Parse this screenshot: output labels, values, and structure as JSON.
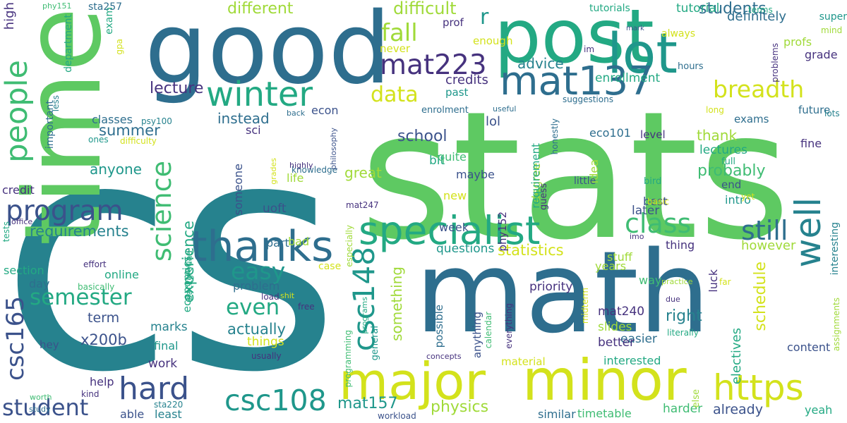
{
  "palette": {
    "yellow": "#d3e21c",
    "lime": "#a0da39",
    "green": "#5ec962",
    "mint": "#3fbc73",
    "teal": "#23a983",
    "cyan": "#1f978b",
    "steel": "#26828e",
    "blue": "#2e6e8e",
    "indigo": "#3b528b",
    "violet": "#46327e",
    "purple": "#440154"
  },
  "words": [
    {
      "text": "stats",
      "color": "green"
    },
    {
      "text": "cs",
      "color": "steel"
    },
    {
      "text": "math",
      "color": "blue"
    },
    {
      "text": "time",
      "color": "green"
    },
    {
      "text": "good",
      "color": "blue"
    },
    {
      "text": "post",
      "color": "teal"
    },
    {
      "text": "lot",
      "color": "cyan"
    },
    {
      "text": "minor",
      "color": "yellow"
    },
    {
      "text": "major",
      "color": "yellow"
    },
    {
      "text": "thanks",
      "color": "blue"
    },
    {
      "text": "specialist",
      "color": "teal"
    },
    {
      "text": "well",
      "color": "steel"
    },
    {
      "text": "mat137",
      "color": "blue"
    },
    {
      "text": "winter",
      "color": "teal"
    },
    {
      "text": "https",
      "color": "yellow"
    },
    {
      "text": "people",
      "color": "mint"
    },
    {
      "text": "csc148",
      "color": "cyan"
    },
    {
      "text": "program",
      "color": "indigo"
    },
    {
      "text": "hard",
      "color": "indigo"
    },
    {
      "text": "csc108",
      "color": "cyan"
    },
    {
      "text": "mat223",
      "color": "violet"
    },
    {
      "text": "science",
      "color": "mint"
    },
    {
      "text": "csc165",
      "color": "indigo"
    },
    {
      "text": "breadth",
      "color": "yellow"
    },
    {
      "text": "fall",
      "color": "lime"
    },
    {
      "text": "class",
      "color": "mint"
    },
    {
      "text": "still",
      "color": "blue"
    },
    {
      "text": "easy",
      "color": "cyan"
    },
    {
      "text": "even",
      "color": "teal"
    },
    {
      "text": "semester",
      "color": "teal"
    },
    {
      "text": "data",
      "color": "yellow"
    },
    {
      "text": "student",
      "color": "indigo"
    },
    {
      "text": "schedule",
      "color": "yellow"
    },
    {
      "text": "probably",
      "color": "mint"
    },
    {
      "text": "something",
      "color": "lime"
    },
    {
      "text": "experience",
      "color": "teal"
    },
    {
      "text": "actually",
      "color": "steel"
    },
    {
      "text": "statistics",
      "color": "yellow"
    },
    {
      "text": "r",
      "color": "cyan"
    },
    {
      "text": "school",
      "color": "indigo"
    },
    {
      "text": "mat157",
      "color": "cyan"
    },
    {
      "text": "physics",
      "color": "lime"
    },
    {
      "text": "students",
      "color": "blue"
    },
    {
      "text": "right",
      "color": "steel"
    },
    {
      "text": "difficult",
      "color": "lime"
    },
    {
      "text": "different",
      "color": "lime"
    },
    {
      "text": "lecture",
      "color": "violet"
    },
    {
      "text": "requirements",
      "color": "steel"
    },
    {
      "text": "summer",
      "color": "blue"
    },
    {
      "text": "great",
      "color": "lime"
    },
    {
      "text": "advice",
      "color": "steel"
    },
    {
      "text": "credits",
      "color": "violet"
    },
    {
      "text": "however",
      "color": "lime"
    },
    {
      "text": "interesting",
      "color": "steel"
    },
    {
      "text": "electives",
      "color": "teal"
    },
    {
      "text": "already",
      "color": "indigo"
    },
    {
      "text": "x200b",
      "color": "indigo"
    },
    {
      "text": "definitely",
      "color": "blue"
    },
    {
      "text": "tutorial",
      "color": "teal"
    },
    {
      "text": "enrollment",
      "color": "teal"
    },
    {
      "text": "high",
      "color": "violet"
    },
    {
      "text": "instead",
      "color": "blue"
    },
    {
      "text": "anyone",
      "color": "cyan"
    },
    {
      "text": "lectures",
      "color": "teal"
    },
    {
      "text": "thank",
      "color": "lime"
    },
    {
      "text": "priority",
      "color": "violet"
    },
    {
      "text": "work",
      "color": "violet"
    },
    {
      "text": "term",
      "color": "indigo"
    },
    {
      "text": "marks",
      "color": "steel"
    },
    {
      "text": "uoft",
      "color": "indigo"
    },
    {
      "text": "mat240",
      "color": "violet"
    },
    {
      "text": "later",
      "color": "indigo"
    },
    {
      "text": "intro",
      "color": "cyan"
    },
    {
      "text": "questions",
      "color": "cyan"
    },
    {
      "text": "thing",
      "color": "violet"
    },
    {
      "text": "way",
      "color": "mint"
    },
    {
      "text": "years",
      "color": "lime"
    },
    {
      "text": "timetable",
      "color": "mint"
    },
    {
      "text": "interested",
      "color": "teal"
    },
    {
      "text": "easier",
      "color": "blue"
    },
    {
      "text": "content",
      "color": "indigo"
    },
    {
      "text": "grade",
      "color": "violet"
    },
    {
      "text": "profs",
      "color": "lime"
    },
    {
      "text": "super",
      "color": "cyan"
    },
    {
      "text": "phy152",
      "color": "violet"
    },
    {
      "text": "eco101",
      "color": "blue"
    },
    {
      "text": "fine",
      "color": "violet"
    },
    {
      "text": "bad",
      "color": "lime"
    },
    {
      "text": "final",
      "color": "cyan"
    },
    {
      "text": "help",
      "color": "violet"
    },
    {
      "text": "able",
      "color": "indigo"
    },
    {
      "text": "least",
      "color": "steel"
    },
    {
      "text": "similar",
      "color": "blue"
    },
    {
      "text": "harder",
      "color": "mint"
    },
    {
      "text": "yeah",
      "color": "teal"
    },
    {
      "text": "better",
      "color": "violet"
    },
    {
      "text": "slides",
      "color": "lime"
    },
    {
      "text": "luck",
      "color": "violet"
    },
    {
      "text": "stuff",
      "color": "lime"
    },
    {
      "text": "best",
      "color": "indigo"
    },
    {
      "text": "level",
      "color": "violet"
    },
    {
      "text": "lol",
      "color": "indigo"
    },
    {
      "text": "idea",
      "color": "lime"
    },
    {
      "text": "bit",
      "color": "teal"
    },
    {
      "text": "maybe",
      "color": "indigo"
    },
    {
      "text": "quite",
      "color": "mint"
    },
    {
      "text": "degree",
      "color": "lime"
    },
    {
      "text": "requirement",
      "color": "teal"
    },
    {
      "text": "new",
      "color": "yellow"
    },
    {
      "text": "week",
      "color": "indigo"
    },
    {
      "text": "part",
      "color": "blue"
    },
    {
      "text": "online",
      "color": "teal"
    },
    {
      "text": "life",
      "color": "lime"
    },
    {
      "text": "someone",
      "color": "indigo"
    },
    {
      "text": "sci",
      "color": "violet"
    },
    {
      "text": "econ",
      "color": "indigo"
    },
    {
      "text": "classes",
      "color": "blue"
    },
    {
      "text": "exams",
      "color": "blue"
    },
    {
      "text": "things",
      "color": "yellow"
    },
    {
      "text": "problem",
      "color": "blue"
    },
    {
      "text": "economics",
      "color": "teal"
    },
    {
      "text": "hey",
      "color": "indigo"
    },
    {
      "text": "day",
      "color": "blue"
    },
    {
      "text": "section",
      "color": "teal"
    },
    {
      "text": "credit",
      "color": "violet"
    },
    {
      "text": "important",
      "color": "blue"
    },
    {
      "text": "department",
      "color": "teal"
    },
    {
      "text": "material",
      "color": "yellow"
    },
    {
      "text": "possible",
      "color": "blue"
    },
    {
      "text": "anything",
      "color": "indigo"
    },
    {
      "text": "general",
      "color": "cyan"
    },
    {
      "text": "never",
      "color": "yellow"
    },
    {
      "text": "enough",
      "color": "yellow"
    },
    {
      "text": "prof",
      "color": "violet"
    },
    {
      "text": "past",
      "color": "cyan"
    },
    {
      "text": "end",
      "color": "indigo"
    },
    {
      "text": "hours",
      "color": "blue"
    },
    {
      "text": "tutorials",
      "color": "teal"
    },
    {
      "text": "sta257",
      "color": "blue"
    },
    {
      "text": "phy151",
      "color": "mint"
    },
    {
      "text": "psy100",
      "color": "steel"
    },
    {
      "text": "mat247",
      "color": "violet"
    },
    {
      "text": "sta220",
      "color": "steel"
    },
    {
      "text": "exam",
      "color": "teal"
    },
    {
      "text": "gpa",
      "color": "yellow"
    },
    {
      "text": "ones",
      "color": "cyan"
    },
    {
      "text": "difficulty",
      "color": "yellow"
    },
    {
      "text": "less",
      "color": "steel"
    },
    {
      "text": "tests",
      "color": "teal"
    },
    {
      "text": "office",
      "color": "violet"
    },
    {
      "text": "effort",
      "color": "violet"
    },
    {
      "text": "basically",
      "color": "mint"
    },
    {
      "text": "background",
      "color": "teal"
    },
    {
      "text": "worth",
      "color": "mint"
    },
    {
      "text": "study",
      "color": "blue"
    },
    {
      "text": "kind",
      "color": "violet"
    },
    {
      "text": "case",
      "color": "yellow"
    },
    {
      "text": "load",
      "color": "violet"
    },
    {
      "text": "shit",
      "color": "yellow"
    },
    {
      "text": "free",
      "color": "violet"
    },
    {
      "text": "usually",
      "color": "violet"
    },
    {
      "text": "programming",
      "color": "mint"
    },
    {
      "text": "programs",
      "color": "teal"
    },
    {
      "text": "especially",
      "color": "lime"
    },
    {
      "text": "workload",
      "color": "indigo"
    },
    {
      "text": "concepts",
      "color": "violet"
    },
    {
      "text": "calendar",
      "color": "mint"
    },
    {
      "text": "everything",
      "color": "violet"
    },
    {
      "text": "midterm",
      "color": "yellow"
    },
    {
      "text": "due",
      "color": "violet"
    },
    {
      "text": "literally",
      "color": "teal"
    },
    {
      "text": "assignments",
      "color": "lime"
    },
    {
      "text": "else",
      "color": "lime"
    },
    {
      "text": "far",
      "color": "yellow"
    },
    {
      "text": "practice",
      "color": "lime"
    },
    {
      "text": "basic",
      "color": "yellow"
    },
    {
      "text": "imo",
      "color": "violet"
    },
    {
      "text": "guess",
      "color": "violet"
    },
    {
      "text": "little",
      "color": "indigo"
    },
    {
      "text": "bird",
      "color": "teal"
    },
    {
      "text": "honestly",
      "color": "blue"
    },
    {
      "text": "yet",
      "color": "yellow"
    },
    {
      "text": "full",
      "color": "teal"
    },
    {
      "text": "long",
      "color": "yellow"
    },
    {
      "text": "future",
      "color": "blue"
    },
    {
      "text": "suggestions",
      "color": "blue"
    },
    {
      "text": "useful",
      "color": "blue"
    },
    {
      "text": "enrolment",
      "color": "blue"
    },
    {
      "text": "problems",
      "color": "violet"
    },
    {
      "text": "mind",
      "color": "lime"
    },
    {
      "text": "lots",
      "color": "steel"
    },
    {
      "text": "always",
      "color": "yellow"
    },
    {
      "text": "im",
      "color": "violet"
    },
    {
      "text": "mark",
      "color": "indigo"
    },
    {
      "text": "terms",
      "color": "teal"
    },
    {
      "text": "back",
      "color": "blue"
    },
    {
      "text": "knowledge",
      "color": "blue"
    },
    {
      "text": "philosophy",
      "color": "indigo"
    },
    {
      "text": "highly",
      "color": "violet"
    },
    {
      "text": "grades",
      "color": "yellow"
    }
  ]
}
